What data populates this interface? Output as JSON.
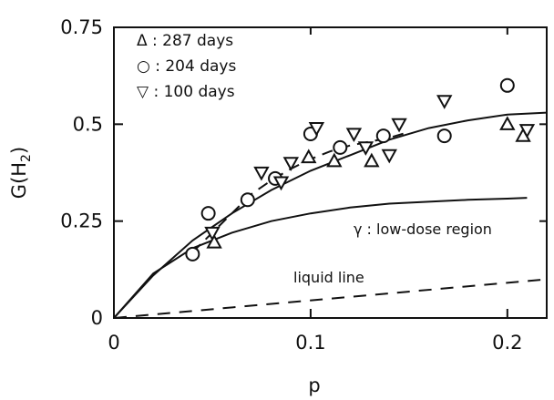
{
  "chart_data": {
    "type": "scatter",
    "xlabel": "p",
    "ylabel": "G(H",
    "ylabel_sub": "2",
    "ylabel_close": ")",
    "xlim": [
      0,
      0.22
    ],
    "ylim": [
      0,
      0.75
    ],
    "xticks": [
      {
        "value": 0,
        "label": "0"
      },
      {
        "value": 0.1,
        "label": "0.1"
      },
      {
        "value": 0.2,
        "label": "0.2"
      }
    ],
    "yticks": [
      {
        "value": 0,
        "label": "0"
      },
      {
        "value": 0.25,
        "label": "0.25"
      },
      {
        "value": 0.5,
        "label": "0.5"
      },
      {
        "value": 0.75,
        "label": "0.75"
      }
    ],
    "grid": false,
    "legend_position": "top-left",
    "series": [
      {
        "name": "287 days",
        "legend_label": "Δ : 287 days",
        "marker": "triangle-up",
        "x": [
          0.051,
          0.099,
          0.112,
          0.131,
          0.2,
          0.208
        ],
        "y": [
          0.195,
          0.415,
          0.405,
          0.405,
          0.5,
          0.47
        ]
      },
      {
        "name": "204 days",
        "legend_label": "○ : 204 days",
        "marker": "circle",
        "x": [
          0.04,
          0.048,
          0.068,
          0.082,
          0.1,
          0.115,
          0.137,
          0.168,
          0.2
        ],
        "y": [
          0.165,
          0.27,
          0.305,
          0.36,
          0.475,
          0.44,
          0.47,
          0.47,
          0.6
        ]
      },
      {
        "name": "100 days",
        "legend_label": "▽ : 100 days",
        "marker": "triangle-down",
        "x": [
          0.05,
          0.075,
          0.085,
          0.09,
          0.103,
          0.122,
          0.128,
          0.14,
          0.145,
          0.168,
          0.21
        ],
        "y": [
          0.22,
          0.375,
          0.35,
          0.4,
          0.49,
          0.475,
          0.44,
          0.42,
          0.5,
          0.56,
          0.485
        ]
      }
    ],
    "curves": [
      {
        "name": "fit",
        "style": "solid",
        "x": [
          0,
          0.02,
          0.04,
          0.06,
          0.08,
          0.1,
          0.12,
          0.14,
          0.16,
          0.18,
          0.2,
          0.22
        ],
        "y": [
          0,
          0.11,
          0.2,
          0.27,
          0.33,
          0.38,
          0.42,
          0.46,
          0.49,
          0.51,
          0.525,
          0.53
        ]
      },
      {
        "name": "low-dose",
        "style": "solid",
        "x": [
          0,
          0.02,
          0.04,
          0.06,
          0.08,
          0.1,
          0.12,
          0.14,
          0.16,
          0.18,
          0.2,
          0.21
        ],
        "y": [
          0,
          0.115,
          0.18,
          0.22,
          0.25,
          0.27,
          0.285,
          0.295,
          0.3,
          0.305,
          0.308,
          0.31
        ]
      },
      {
        "name": "data-trend",
        "style": "dashed",
        "x": [
          0.04,
          0.05,
          0.06,
          0.07,
          0.08,
          0.09,
          0.1,
          0.11,
          0.12,
          0.13,
          0.14,
          0.15
        ],
        "y": [
          0.17,
          0.22,
          0.27,
          0.32,
          0.355,
          0.385,
          0.41,
          0.43,
          0.445,
          0.455,
          0.465,
          0.48
        ]
      },
      {
        "name": "liquid",
        "style": "dashed",
        "x": [
          0,
          0.22
        ],
        "y": [
          0,
          0.1
        ]
      }
    ],
    "annotations": {
      "low_dose": "γ : low-dose region",
      "liquid": "liquid line"
    }
  }
}
